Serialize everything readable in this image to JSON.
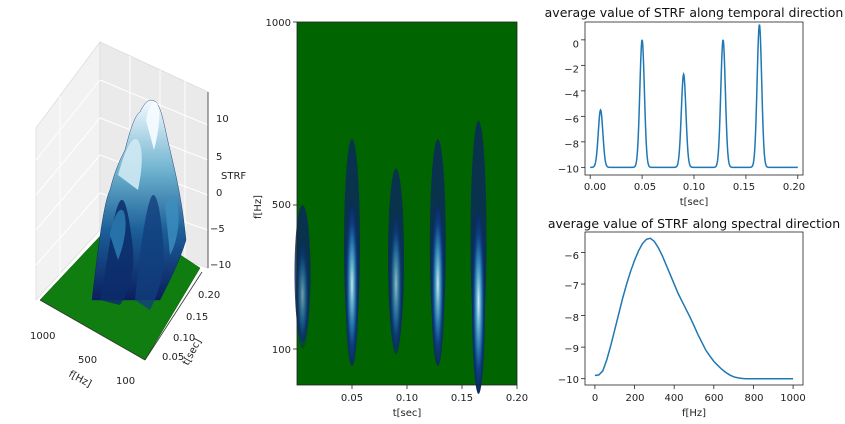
{
  "chart_data": [
    {
      "type": "surface3d",
      "xlabel": "f[Hz]",
      "ylabel": "t[sec]",
      "zlabel": "STRF",
      "x_ticks": [
        "1000",
        "500",
        "100"
      ],
      "y_ticks": [
        "0.05",
        "0.10",
        "0.15",
        "0.20"
      ],
      "z_ticks": [
        "10",
        "5",
        "0",
        "−5",
        "−10"
      ],
      "zlim": [
        -10,
        12
      ],
      "colormap": "ocean (dark blue to white), floor green"
    },
    {
      "type": "heatmap",
      "xlabel": "t[sec]",
      "ylabel": "f[Hz]",
      "x_ticks": [
        "0.05",
        "0.10",
        "0.15",
        "0.20"
      ],
      "y_ticks": [
        "100",
        "500",
        "1000"
      ],
      "xlim": [
        0,
        0.2
      ],
      "background_color": "#006400",
      "blobs": [
        {
          "t": 0.005,
          "f_center": 250,
          "f_span": [
            120,
            500
          ],
          "peak": 0.55
        },
        {
          "t": 0.05,
          "f_center": 280,
          "f_span": [
            100,
            680
          ],
          "peak": 0.95
        },
        {
          "t": 0.09,
          "f_center": 280,
          "f_span": [
            100,
            600
          ],
          "peak": 0.7
        },
        {
          "t": 0.128,
          "f_center": 280,
          "f_span": [
            100,
            680
          ],
          "peak": 0.95
        },
        {
          "t": 0.165,
          "f_center": 230,
          "f_span": [
            80,
            730
          ],
          "peak": 1.0
        }
      ]
    },
    {
      "type": "line",
      "title": "average value of STRF along temporal direction",
      "xlabel": "t[sec]",
      "ylabel": "",
      "xlim": [
        -0.005,
        0.205
      ],
      "ylim": [
        -10.6,
        1.4
      ],
      "x_ticks": [
        "0.00",
        "0.05",
        "0.10",
        "0.15",
        "0.20"
      ],
      "y_ticks": [
        "0",
        "−2",
        "−4",
        "−6",
        "−8",
        "−10"
      ],
      "peaks": [
        {
          "t": 0.01,
          "value": -5.5,
          "width": 0.0022
        },
        {
          "t": 0.05,
          "value": 0.0,
          "width": 0.0022
        },
        {
          "t": 0.09,
          "value": -2.7,
          "width": 0.0022
        },
        {
          "t": 0.128,
          "value": 0.0,
          "width": 0.0022
        },
        {
          "t": 0.163,
          "value": 1.2,
          "width": 0.0022
        }
      ],
      "baseline": -10,
      "x_range": [
        0.0,
        0.2
      ],
      "color": "#1f77b4"
    },
    {
      "type": "line",
      "title": "average value of STRF along spectral direction",
      "xlabel": "f[Hz]",
      "ylabel": "",
      "xlim": [
        -50,
        1050
      ],
      "ylim": [
        -10.2,
        -5.35
      ],
      "x_ticks": [
        "0",
        "200",
        "400",
        "600",
        "800",
        "1000"
      ],
      "y_ticks": [
        "−6",
        "−7",
        "−8",
        "−9",
        "−10"
      ],
      "x": [
        0,
        20,
        40,
        60,
        80,
        100,
        120,
        140,
        160,
        180,
        200,
        220,
        240,
        260,
        280,
        300,
        320,
        340,
        360,
        380,
        400,
        420,
        440,
        460,
        480,
        500,
        520,
        540,
        560,
        580,
        600,
        620,
        640,
        660,
        680,
        700,
        720,
        740,
        760,
        780,
        800,
        850,
        900,
        950,
        1000
      ],
      "y": [
        -9.9,
        -9.88,
        -9.75,
        -9.4,
        -8.95,
        -8.45,
        -7.95,
        -7.45,
        -7.0,
        -6.6,
        -6.25,
        -5.95,
        -5.72,
        -5.58,
        -5.55,
        -5.65,
        -5.85,
        -6.1,
        -6.4,
        -6.7,
        -7.0,
        -7.3,
        -7.55,
        -7.8,
        -8.05,
        -8.32,
        -8.6,
        -8.85,
        -9.1,
        -9.28,
        -9.45,
        -9.58,
        -9.7,
        -9.8,
        -9.88,
        -9.94,
        -9.97,
        -9.99,
        -10.0,
        -10.0,
        -10.0,
        -10.0,
        -10.0,
        -10.0,
        -10.0
      ],
      "color": "#1f77b4"
    }
  ]
}
